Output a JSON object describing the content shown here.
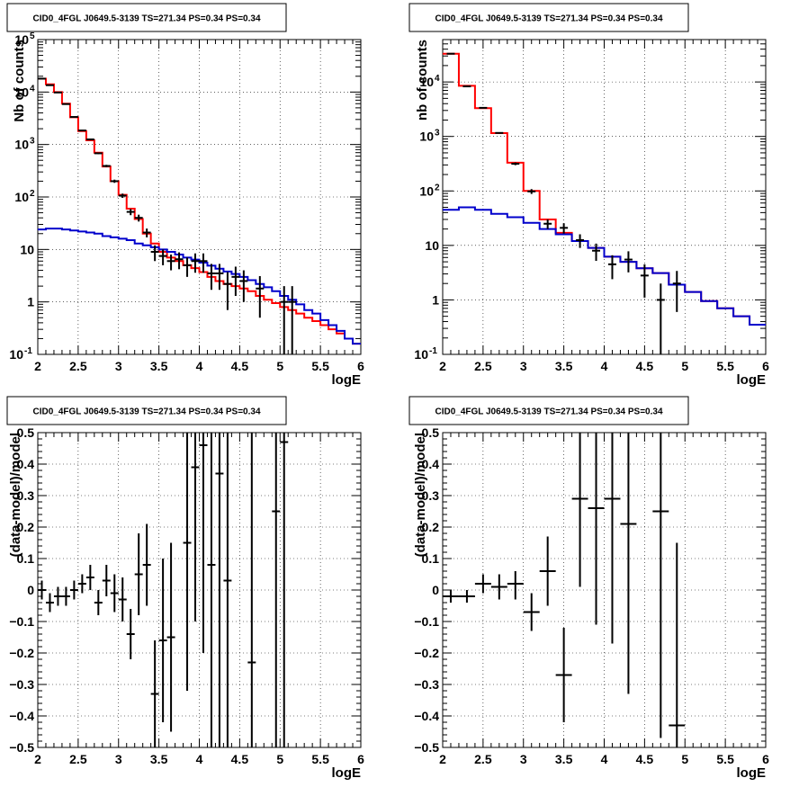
{
  "colors": {
    "data": "#000000",
    "total_model": "#ff0000",
    "background_model": "#0000cc",
    "grid": "#000000"
  },
  "chart_data": [
    {
      "type": "line",
      "title": "CID0_4FGL J0649.5-3139 TS=271.34 PS=0.34 PS=0.34",
      "xlabel": "logE",
      "ylabel": "Nb of counts",
      "xlim": [
        2,
        6
      ],
      "ylim": [
        0.1,
        100000
      ],
      "log_y": true,
      "grid": true,
      "x_ticks": [
        "2",
        "2.5",
        "3",
        "3.5",
        "4",
        "4.5",
        "5",
        "5.5",
        "6"
      ],
      "y_ticks": [
        {
          "value": 0.1,
          "label": "10",
          "sup": "-1"
        },
        {
          "value": 1,
          "label": "1",
          "sup": ""
        },
        {
          "value": 10,
          "label": "10",
          "sup": ""
        },
        {
          "value": 100,
          "label": "10",
          "sup": "2"
        },
        {
          "value": 1000,
          "label": "10",
          "sup": "3"
        },
        {
          "value": 10000,
          "label": "10",
          "sup": "4"
        },
        {
          "value": 100000,
          "label": "10",
          "sup": "5"
        }
      ],
      "bin_edges": [
        2.0,
        2.1,
        2.2,
        2.3,
        2.4,
        2.5,
        2.6,
        2.7,
        2.8,
        2.9,
        3.0,
        3.1,
        3.2,
        3.3,
        3.4,
        3.5,
        3.6,
        3.7,
        3.8,
        3.9,
        4.0,
        4.1,
        4.2,
        4.3,
        4.4,
        4.5,
        4.6,
        4.7,
        4.8,
        4.9,
        5.0,
        5.1,
        5.2,
        5.3,
        5.4,
        5.5,
        5.6,
        5.7,
        5.8,
        5.9,
        6.0
      ],
      "series": [
        {
          "kind": "step",
          "role": "total_model",
          "values": [
            18000,
            14000,
            10000,
            6000,
            3300,
            1800,
            1200,
            700,
            380,
            200,
            110,
            60,
            38,
            20,
            13,
            9,
            7,
            6,
            5,
            4.4,
            3.7,
            3.0,
            2.5,
            2.2,
            2.0,
            1.8,
            1.6,
            1.3,
            1.1,
            0.95,
            0.8,
            0.7,
            0.6,
            0.5,
            0.43,
            0.36,
            0.3,
            0.25,
            0.2,
            0.16
          ]
        },
        {
          "kind": "step",
          "role": "background_model",
          "values": [
            24,
            25,
            25,
            24,
            23,
            22,
            21,
            20,
            18,
            17,
            16,
            15,
            13,
            12,
            11,
            10,
            9,
            8,
            7,
            6.4,
            5.6,
            4.9,
            4.3,
            3.8,
            3.4,
            3.0,
            2.6,
            2.2,
            1.9,
            1.6,
            1.3,
            1.1,
            0.9,
            0.7,
            0.6,
            0.45,
            0.36,
            0.28,
            0.2,
            0.16
          ]
        },
        {
          "kind": "points",
          "role": "data",
          "points": [
            {
              "x": 2.05,
              "y": 18000,
              "lo": 17800,
              "hi": 18200
            },
            {
              "x": 2.15,
              "y": 13500,
              "lo": 13300,
              "hi": 13700
            },
            {
              "x": 2.25,
              "y": 9800,
              "lo": 9650,
              "hi": 9950
            },
            {
              "x": 2.35,
              "y": 5900,
              "lo": 5800,
              "hi": 6000
            },
            {
              "x": 2.45,
              "y": 3350,
              "lo": 3300,
              "hi": 3400
            },
            {
              "x": 2.55,
              "y": 1850,
              "lo": 1800,
              "hi": 1900
            },
            {
              "x": 2.65,
              "y": 1250,
              "lo": 1200,
              "hi": 1300
            },
            {
              "x": 2.75,
              "y": 680,
              "lo": 655,
              "hi": 705
            },
            {
              "x": 2.85,
              "y": 390,
              "lo": 370,
              "hi": 410
            },
            {
              "x": 2.95,
              "y": 200,
              "lo": 186,
              "hi": 214
            },
            {
              "x": 3.05,
              "y": 106,
              "lo": 96,
              "hi": 116
            },
            {
              "x": 3.15,
              "y": 52,
              "lo": 45,
              "hi": 59
            },
            {
              "x": 3.25,
              "y": 40,
              "lo": 34,
              "hi": 46
            },
            {
              "x": 3.35,
              "y": 21,
              "lo": 17,
              "hi": 25
            },
            {
              "x": 3.45,
              "y": 9,
              "lo": 6,
              "hi": 12
            },
            {
              "x": 3.55,
              "y": 7.5,
              "lo": 5,
              "hi": 10
            },
            {
              "x": 3.65,
              "y": 6,
              "lo": 4,
              "hi": 8
            },
            {
              "x": 3.75,
              "y": 6.5,
              "lo": 4.2,
              "hi": 8.8
            },
            {
              "x": 3.85,
              "y": 5,
              "lo": 3,
              "hi": 7
            },
            {
              "x": 3.95,
              "y": 6,
              "lo": 3.6,
              "hi": 8.4
            },
            {
              "x": 4.05,
              "y": 6,
              "lo": 3.6,
              "hi": 8.4
            },
            {
              "x": 4.15,
              "y": 3.5,
              "lo": 1.7,
              "hi": 5.3
            },
            {
              "x": 4.25,
              "y": 3.5,
              "lo": 1.7,
              "hi": 5.3
            },
            {
              "x": 4.35,
              "y": 2.2,
              "lo": 0.7,
              "hi": 3.7
            },
            {
              "x": 4.45,
              "y": 3,
              "lo": 1.3,
              "hi": 4.7
            },
            {
              "x": 4.55,
              "y": 2.5,
              "lo": 1,
              "hi": 4
            },
            {
              "x": 4.75,
              "y": 1.8,
              "lo": 0.5,
              "hi": 3.1
            },
            {
              "x": 5.05,
              "y": 1,
              "lo": 0.1,
              "hi": 2
            },
            {
              "x": 5.15,
              "y": 1,
              "lo": 0.1,
              "hi": 2
            }
          ]
        }
      ]
    },
    {
      "type": "line",
      "title": "CID0_4FGL J0649.5-3139 TS=271.34 PS=0.34 PS=0.34",
      "xlabel": "logE",
      "ylabel": "nb of counts",
      "xlim": [
        2,
        6
      ],
      "ylim": [
        0.1,
        60000
      ],
      "log_y": true,
      "grid": true,
      "x_ticks": [
        "2",
        "2.5",
        "3",
        "3.5",
        "4",
        "4.5",
        "5",
        "5.5",
        "6"
      ],
      "y_ticks": [
        {
          "value": 0.1,
          "label": "10",
          "sup": "-1"
        },
        {
          "value": 1,
          "label": "1",
          "sup": ""
        },
        {
          "value": 10,
          "label": "10",
          "sup": ""
        },
        {
          "value": 100,
          "label": "10",
          "sup": "2"
        },
        {
          "value": 1000,
          "label": "10",
          "sup": "3"
        },
        {
          "value": 10000,
          "label": "10",
          "sup": "4"
        }
      ],
      "bin_edges": [
        2.0,
        2.2,
        2.4,
        2.6,
        2.8,
        3.0,
        3.2,
        3.4,
        3.6,
        3.8,
        4.0,
        4.2,
        4.4,
        4.6,
        4.8,
        5.0,
        5.2,
        5.4,
        5.6,
        5.8,
        6.0
      ],
      "series": [
        {
          "kind": "step",
          "role": "total_model",
          "values": [
            33000,
            8500,
            3300,
            1150,
            330,
            100,
            30,
            17,
            12,
            9,
            6.2,
            5,
            3.8,
            3.1,
            1.9,
            1.4,
            0.95,
            0.7,
            0.5,
            0.35
          ]
        },
        {
          "kind": "step",
          "role": "background_model",
          "values": [
            45,
            50,
            45,
            38,
            33,
            26,
            20,
            16,
            12,
            9,
            6.2,
            5,
            3.8,
            3.1,
            1.9,
            1.4,
            0.95,
            0.7,
            0.5,
            0.35
          ]
        },
        {
          "kind": "points",
          "role": "data",
          "points": [
            {
              "x": 2.1,
              "y": 33000,
              "lo": 32800,
              "hi": 33200
            },
            {
              "x": 2.3,
              "y": 8300,
              "lo": 8200,
              "hi": 8400
            },
            {
              "x": 2.5,
              "y": 3350,
              "lo": 3290,
              "hi": 3410
            },
            {
              "x": 2.7,
              "y": 1160,
              "lo": 1125,
              "hi": 1195
            },
            {
              "x": 2.9,
              "y": 315,
              "lo": 297,
              "hi": 333
            },
            {
              "x": 3.1,
              "y": 98,
              "lo": 88,
              "hi": 108
            },
            {
              "x": 3.3,
              "y": 25,
              "lo": 20,
              "hi": 30
            },
            {
              "x": 3.5,
              "y": 21,
              "lo": 16.5,
              "hi": 25.5
            },
            {
              "x": 3.7,
              "y": 12.5,
              "lo": 9,
              "hi": 16
            },
            {
              "x": 3.9,
              "y": 8,
              "lo": 5.2,
              "hi": 10.8
            },
            {
              "x": 4.1,
              "y": 4.5,
              "lo": 2.4,
              "hi": 6.6
            },
            {
              "x": 4.3,
              "y": 5.5,
              "lo": 3.2,
              "hi": 7.8
            },
            {
              "x": 4.5,
              "y": 2.8,
              "lo": 1.1,
              "hi": 4.5
            },
            {
              "x": 4.7,
              "y": 1.0,
              "lo": 0.1,
              "hi": 2.0
            },
            {
              "x": 4.9,
              "y": 2.0,
              "lo": 0.6,
              "hi": 3.4
            }
          ]
        }
      ]
    },
    {
      "type": "scatter",
      "title": "CID0_4FGL J0649.5-3139 TS=271.34 PS=0.34 PS=0.34",
      "xlabel": "logE",
      "ylabel": "(data-model)/model",
      "xlim": [
        2,
        6
      ],
      "ylim": [
        -0.5,
        0.5
      ],
      "log_y": false,
      "grid": true,
      "x_ticks": [
        "2",
        "2.5",
        "3",
        "3.5",
        "4",
        "4.5",
        "5",
        "5.5",
        "6"
      ],
      "y_ticks": [
        {
          "value": -0.5,
          "label": "−0.5",
          "sup": ""
        },
        {
          "value": -0.4,
          "label": "−0.4",
          "sup": ""
        },
        {
          "value": -0.3,
          "label": "−0.3",
          "sup": ""
        },
        {
          "value": -0.2,
          "label": "−0.2",
          "sup": ""
        },
        {
          "value": -0.1,
          "label": "−0.1",
          "sup": ""
        },
        {
          "value": 0,
          "label": "0",
          "sup": ""
        },
        {
          "value": 0.1,
          "label": "0.1",
          "sup": ""
        },
        {
          "value": 0.2,
          "label": "0.2",
          "sup": ""
        },
        {
          "value": 0.3,
          "label": "0.3",
          "sup": ""
        },
        {
          "value": 0.4,
          "label": "0.4",
          "sup": ""
        },
        {
          "value": 0.5,
          "label": "0.5",
          "sup": ""
        }
      ],
      "series": [
        {
          "kind": "points",
          "role": "data",
          "halfwidth": 0.05,
          "points": [
            {
              "x": 2.05,
              "y": 0.0,
              "lo": -0.03,
              "hi": 0.03
            },
            {
              "x": 2.15,
              "y": -0.04,
              "lo": -0.07,
              "hi": -0.01
            },
            {
              "x": 2.25,
              "y": -0.02,
              "lo": -0.05,
              "hi": 0.01
            },
            {
              "x": 2.35,
              "y": -0.02,
              "lo": -0.05,
              "hi": 0.01
            },
            {
              "x": 2.45,
              "y": 0.0,
              "lo": -0.03,
              "hi": 0.03
            },
            {
              "x": 2.55,
              "y": 0.02,
              "lo": -0.01,
              "hi": 0.05
            },
            {
              "x": 2.65,
              "y": 0.04,
              "lo": 0.0,
              "hi": 0.08
            },
            {
              "x": 2.75,
              "y": -0.04,
              "lo": -0.08,
              "hi": 0.0
            },
            {
              "x": 2.85,
              "y": 0.03,
              "lo": -0.02,
              "hi": 0.08
            },
            {
              "x": 2.95,
              "y": -0.01,
              "lo": -0.07,
              "hi": 0.05
            },
            {
              "x": 3.05,
              "y": -0.03,
              "lo": -0.1,
              "hi": 0.04
            },
            {
              "x": 3.15,
              "y": -0.14,
              "lo": -0.22,
              "hi": -0.06
            },
            {
              "x": 3.25,
              "y": 0.05,
              "lo": -0.08,
              "hi": 0.18
            },
            {
              "x": 3.35,
              "y": 0.08,
              "lo": -0.05,
              "hi": 0.21
            },
            {
              "x": 3.45,
              "y": -0.33,
              "lo": -0.55,
              "hi": -0.16
            },
            {
              "x": 3.55,
              "y": -0.16,
              "lo": -0.42,
              "hi": 0.1
            },
            {
              "x": 3.65,
              "y": -0.15,
              "lo": -0.45,
              "hi": 0.15
            },
            {
              "x": 3.85,
              "y": 0.15,
              "lo": -0.32,
              "hi": 0.62
            },
            {
              "x": 3.95,
              "y": 0.39,
              "lo": -0.1,
              "hi": 0.88
            },
            {
              "x": 4.05,
              "y": 0.46,
              "lo": -0.2,
              "hi": 1.1
            },
            {
              "x": 4.15,
              "y": 0.08,
              "lo": -0.6,
              "hi": 0.76
            },
            {
              "x": 4.25,
              "y": 0.37,
              "lo": -0.5,
              "hi": 1.24
            },
            {
              "x": 4.35,
              "y": 0.03,
              "lo": -0.6,
              "hi": 0.66
            },
            {
              "x": 4.65,
              "y": -0.23,
              "lo": -0.6,
              "hi": 0.6
            },
            {
              "x": 4.95,
              "y": 0.25,
              "lo": -0.6,
              "hi": 1.1
            },
            {
              "x": 5.05,
              "y": 0.47,
              "lo": -0.6,
              "hi": 1.5
            }
          ]
        }
      ]
    },
    {
      "type": "scatter",
      "title": "CID0_4FGL J0649.5-3139 TS=271.34 PS=0.34 PS=0.34",
      "xlabel": "logE",
      "ylabel": "(data-model)/model",
      "xlim": [
        2,
        6
      ],
      "ylim": [
        -0.5,
        0.5
      ],
      "log_y": false,
      "grid": true,
      "x_ticks": [
        "2",
        "2.5",
        "3",
        "3.5",
        "4",
        "4.5",
        "5",
        "5.5",
        "6"
      ],
      "y_ticks": [
        {
          "value": -0.5,
          "label": "−0.5",
          "sup": ""
        },
        {
          "value": -0.4,
          "label": "−0.4",
          "sup": ""
        },
        {
          "value": -0.3,
          "label": "−0.3",
          "sup": ""
        },
        {
          "value": -0.2,
          "label": "−0.2",
          "sup": ""
        },
        {
          "value": -0.1,
          "label": "−0.1",
          "sup": ""
        },
        {
          "value": 0,
          "label": "0",
          "sup": ""
        },
        {
          "value": 0.1,
          "label": "0.1",
          "sup": ""
        },
        {
          "value": 0.2,
          "label": "0.2",
          "sup": ""
        },
        {
          "value": 0.3,
          "label": "0.3",
          "sup": ""
        },
        {
          "value": 0.4,
          "label": "0.4",
          "sup": ""
        },
        {
          "value": 0.5,
          "label": "0.5",
          "sup": ""
        }
      ],
      "series": [
        {
          "kind": "points",
          "role": "data",
          "halfwidth": 0.1,
          "points": [
            {
              "x": 2.1,
              "y": -0.02,
              "lo": -0.04,
              "hi": 0.0
            },
            {
              "x": 2.3,
              "y": -0.02,
              "lo": -0.04,
              "hi": 0.0
            },
            {
              "x": 2.5,
              "y": 0.02,
              "lo": -0.01,
              "hi": 0.05
            },
            {
              "x": 2.7,
              "y": 0.01,
              "lo": -0.03,
              "hi": 0.05
            },
            {
              "x": 2.9,
              "y": 0.02,
              "lo": -0.03,
              "hi": 0.06
            },
            {
              "x": 3.1,
              "y": -0.07,
              "lo": -0.13,
              "hi": -0.01
            },
            {
              "x": 3.3,
              "y": 0.06,
              "lo": -0.05,
              "hi": 0.17
            },
            {
              "x": 3.5,
              "y": -0.27,
              "lo": -0.42,
              "hi": -0.12
            },
            {
              "x": 3.7,
              "y": 0.29,
              "lo": 0.01,
              "hi": 0.57
            },
            {
              "x": 3.9,
              "y": 0.26,
              "lo": -0.11,
              "hi": 0.63
            },
            {
              "x": 4.1,
              "y": 0.29,
              "lo": -0.17,
              "hi": 0.75
            },
            {
              "x": 4.3,
              "y": 0.21,
              "lo": -0.33,
              "hi": 0.75
            },
            {
              "x": 4.7,
              "y": 0.25,
              "lo": -0.47,
              "hi": 0.97
            },
            {
              "x": 4.9,
              "y": -0.43,
              "lo": -0.6,
              "hi": 0.15
            }
          ]
        }
      ]
    }
  ]
}
